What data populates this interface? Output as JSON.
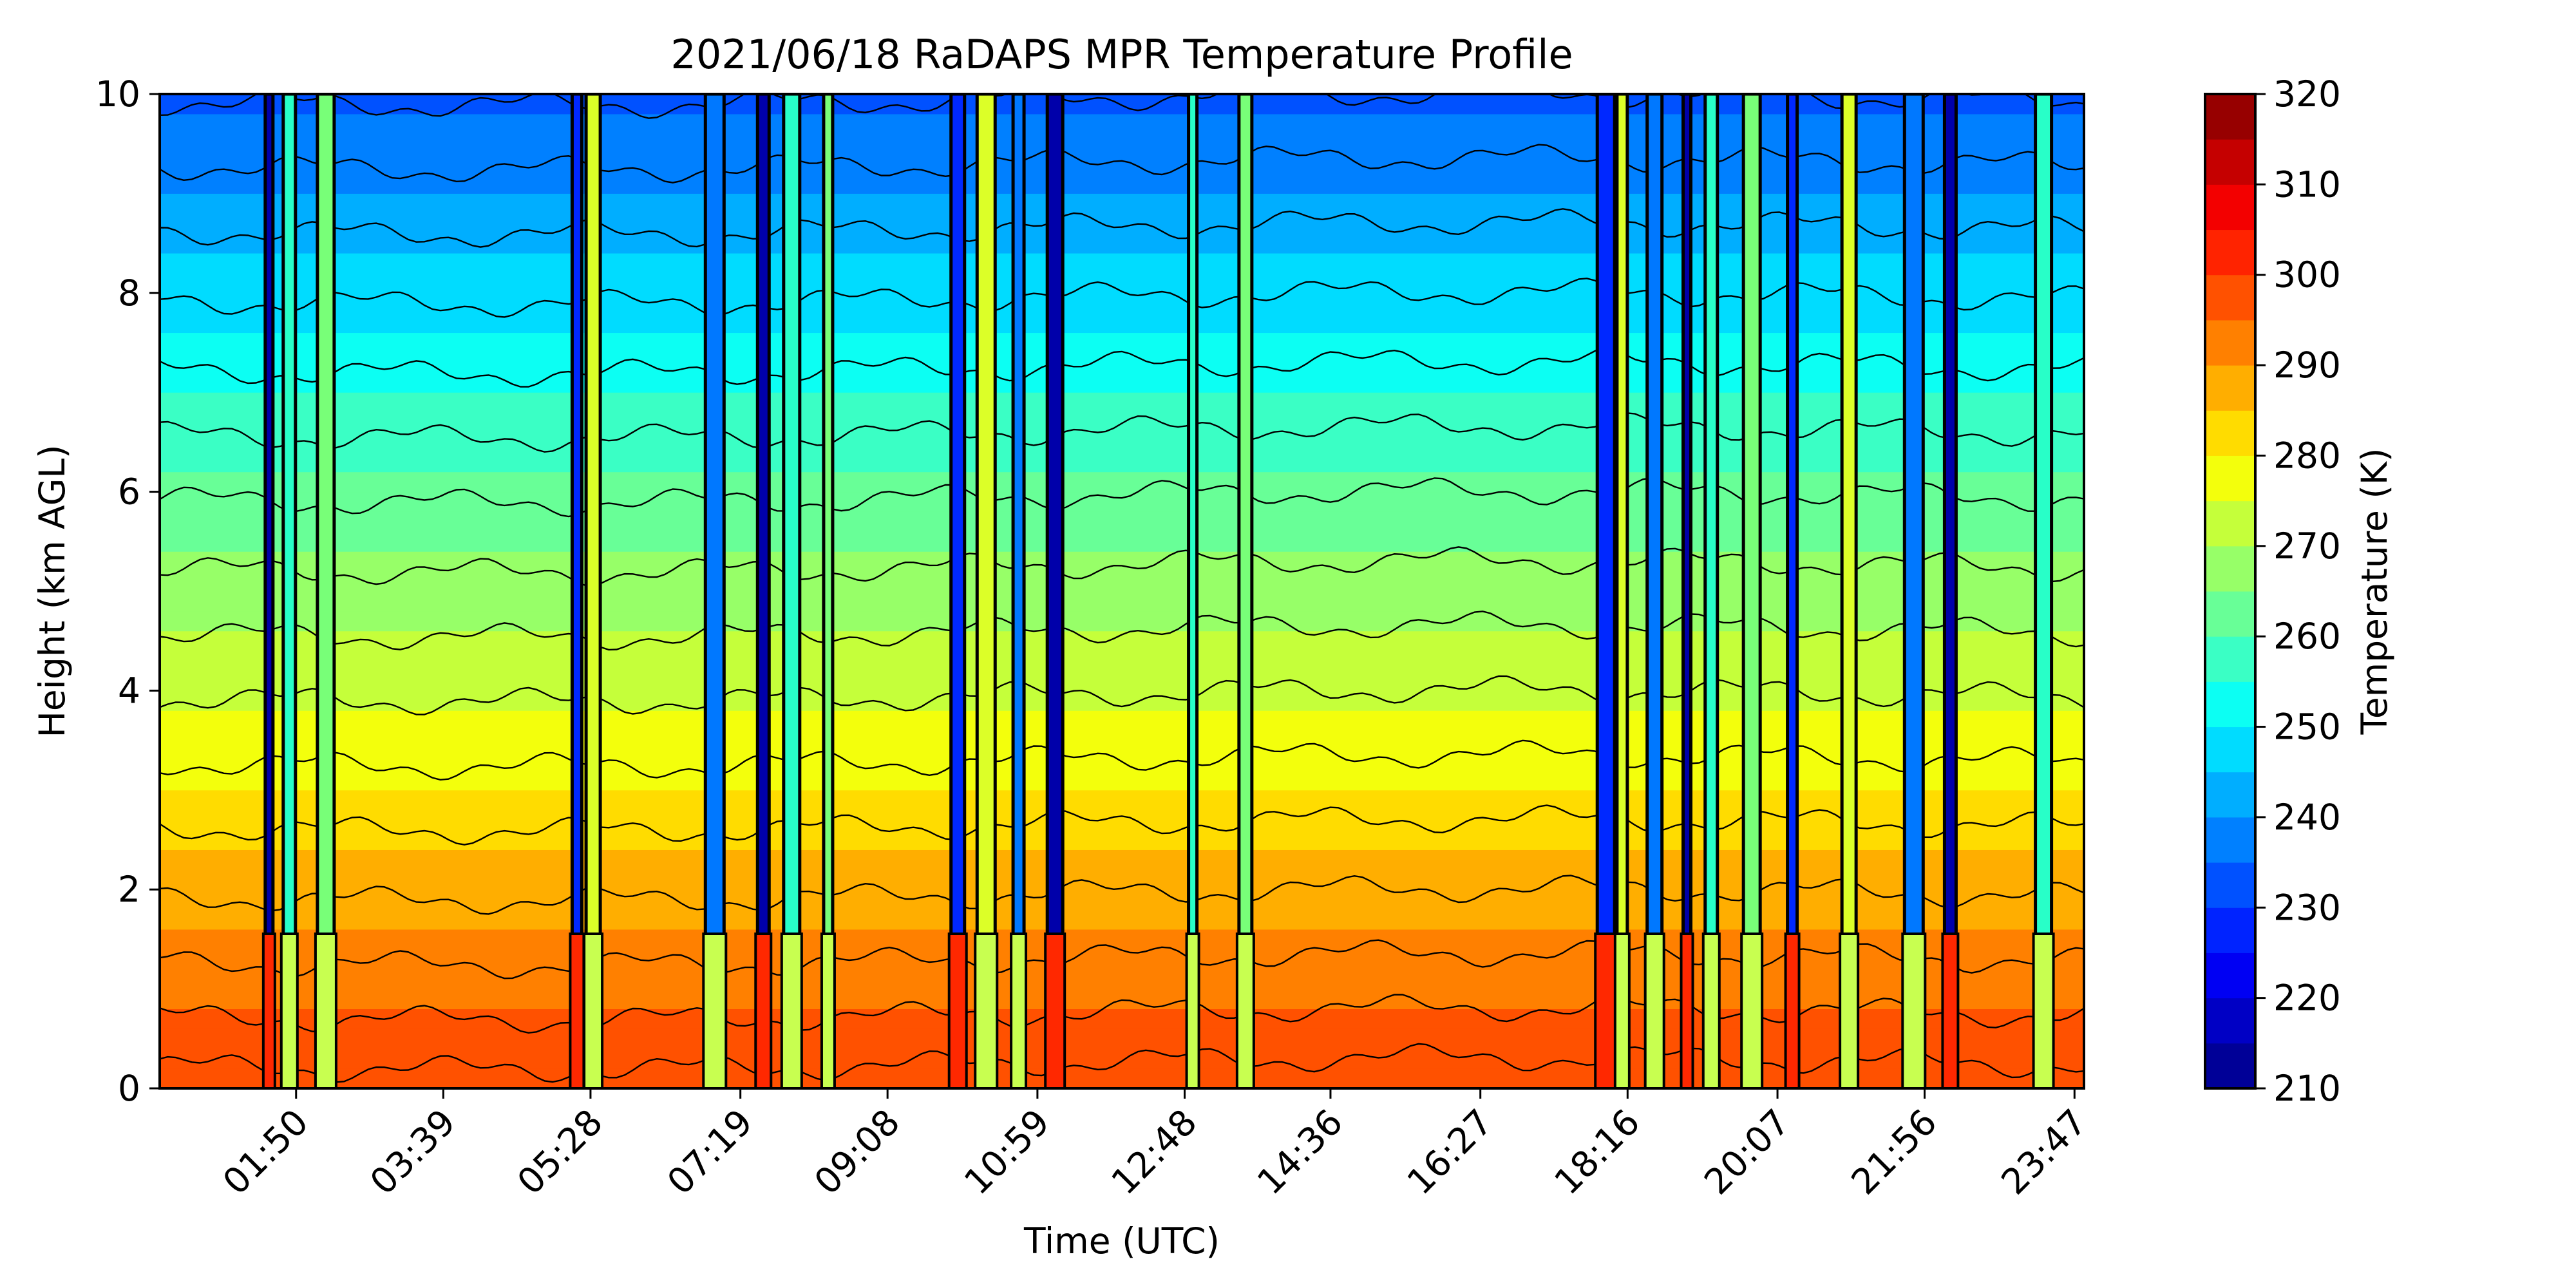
{
  "chart_data": {
    "type": "heatmap",
    "subtype": "filled-contour",
    "title": "2021/06/18 RaDAPS MPR Temperature Profile",
    "xlabel": "Time (UTC)",
    "ylabel": "Height (km AGL)",
    "x_tick_labels": [
      "01:50",
      "03:39",
      "05:28",
      "07:19",
      "09:08",
      "10:59",
      "12:48",
      "14:36",
      "16:27",
      "18:16",
      "20:07",
      "21:56",
      "23:47"
    ],
    "x_tick_hours": [
      1.833,
      3.65,
      5.467,
      7.317,
      9.133,
      10.983,
      12.8,
      14.6,
      16.45,
      18.267,
      20.117,
      21.933,
      23.783
    ],
    "xlim": [
      0.15,
      23.9
    ],
    "y_ticks": [
      "0",
      "2",
      "4",
      "6",
      "8",
      "10"
    ],
    "ylim": [
      0,
      10
    ],
    "colorbar": {
      "label": "Temperature (K)",
      "tick_labels": [
        "320",
        "310",
        "300",
        "290",
        "280",
        "270",
        "260",
        "250",
        "240",
        "230",
        "220",
        "210"
      ],
      "range": [
        210,
        320
      ],
      "step": 5,
      "colormap": "jet"
    },
    "contour_levels_K": [
      300,
      295,
      290,
      285,
      280,
      275,
      270,
      265,
      260,
      255,
      250,
      245,
      240,
      235,
      230,
      225
    ],
    "contour_height_km_baseline": [
      0.25,
      0.75,
      1.3,
      1.95,
      2.65,
      3.3,
      3.95,
      4.6,
      5.25,
      5.95,
      6.6,
      7.25,
      7.95,
      8.65,
      9.3,
      9.95
    ],
    "profile": {
      "height_km": [
        0,
        2,
        4,
        6,
        8,
        10
      ],
      "temperature_K": [
        300,
        287,
        274,
        261,
        248,
        233
      ]
    },
    "spike_times_hours": [
      1.5,
      1.75,
      2.2,
      5.3,
      5.5,
      7.0,
      7.6,
      7.95,
      8.4,
      10.0,
      10.35,
      10.75,
      11.2,
      12.9,
      13.55,
      18.0,
      18.2,
      18.6,
      19.0,
      19.3,
      19.8,
      20.3,
      21.0,
      21.8,
      22.25,
      23.4
    ]
  }
}
